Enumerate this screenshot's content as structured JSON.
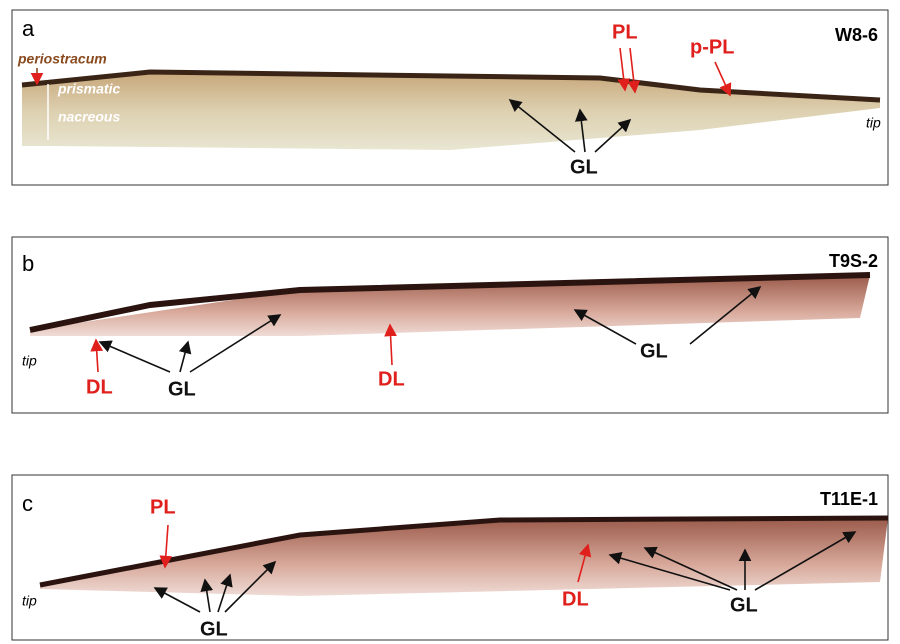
{
  "panels": [
    {
      "label": "a",
      "sample": "W8-6",
      "annotations": [
        "periostracum",
        "prismatic",
        "nacreous",
        "PL",
        "p-PL",
        "GL",
        "tip"
      ]
    },
    {
      "label": "b",
      "sample": "T9S-2",
      "annotations": [
        "tip",
        "DL",
        "GL",
        "DL",
        "GL"
      ]
    },
    {
      "label": "c",
      "sample": "T11E-1",
      "annotations": [
        "PL",
        "tip",
        "GL",
        "DL",
        "GL"
      ]
    }
  ]
}
